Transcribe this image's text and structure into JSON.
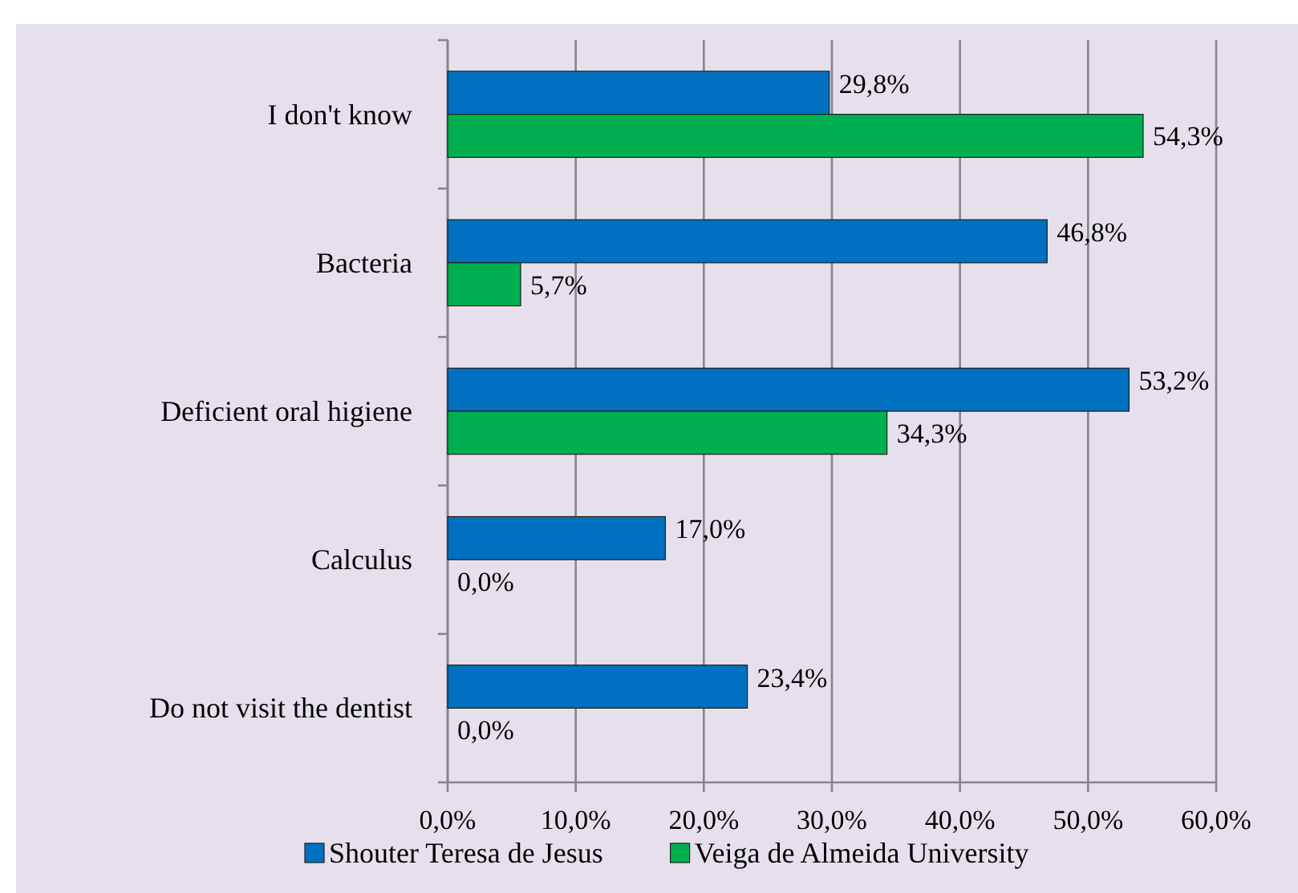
{
  "chart_data": {
    "type": "bar",
    "orientation": "horizontal",
    "categories": [
      "I don't know",
      "Bacteria",
      "Deficient oral higiene",
      "Calculus",
      "Do not visit the dentist"
    ],
    "series": [
      {
        "name": "Shouter Teresa de Jesus",
        "color": "#0070c0",
        "values": [
          29.8,
          46.8,
          53.2,
          17.0,
          23.4
        ],
        "value_labels": [
          "29,8%",
          "46,8%",
          "53,2%",
          "17,0%",
          "23,4%"
        ]
      },
      {
        "name": "Veiga de Almeida University",
        "color": "#00b050",
        "values": [
          54.3,
          5.7,
          34.3,
          0.0,
          0.0
        ],
        "value_labels": [
          "54,3%",
          "5,7%",
          "34,3%",
          "0,0%",
          "0,0%"
        ]
      }
    ],
    "xlim": [
      0,
      60
    ],
    "xticks": [
      {
        "value": 0,
        "label": "0,0%"
      },
      {
        "value": 10,
        "label": "10,0%"
      },
      {
        "value": 20,
        "label": "20,0%"
      },
      {
        "value": 30,
        "label": "30,0%"
      },
      {
        "value": 40,
        "label": "40,0%"
      },
      {
        "value": 50,
        "label": "50,0%"
      },
      {
        "value": 60,
        "label": "60,0%"
      }
    ],
    "grid": "x",
    "legend": "bottom"
  }
}
